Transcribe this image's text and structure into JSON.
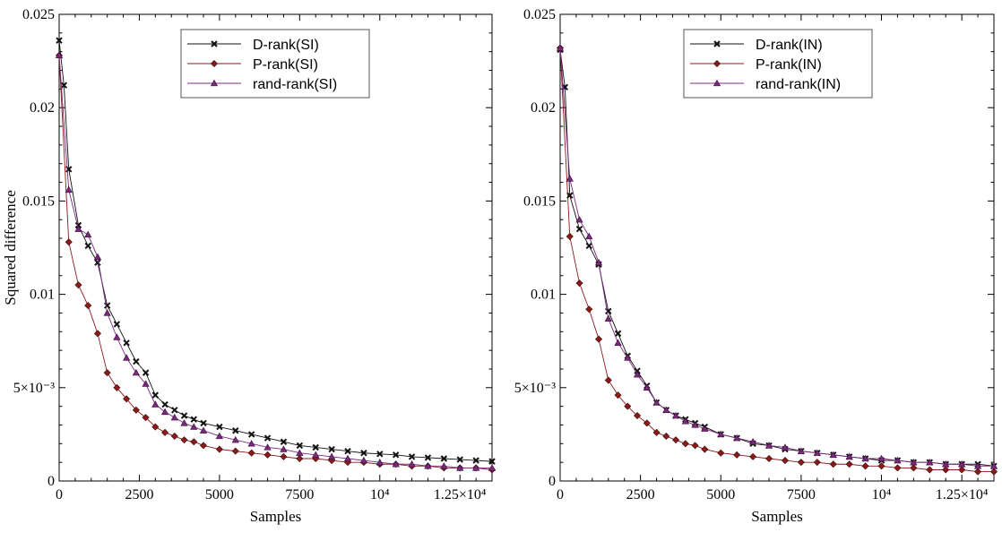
{
  "chart_data": [
    {
      "type": "line",
      "title": "",
      "xlabel": "Samples",
      "ylabel": "Squared difference",
      "xlim": [
        0,
        13500
      ],
      "ylim": [
        0,
        0.025
      ],
      "x_ticks": [
        0,
        2500,
        5000,
        7500,
        10000,
        12500
      ],
      "x_tick_labels": [
        "0",
        "2500",
        "5000",
        "7500",
        "10⁴",
        "1.25×10⁴"
      ],
      "y_ticks": [
        0,
        0.005,
        0.01,
        0.015,
        0.02,
        0.025
      ],
      "y_tick_labels": [
        "0",
        "5×10⁻³",
        "0.01",
        "0.015",
        "0.02",
        "0.025"
      ],
      "legend_position": "top-center",
      "grid": false,
      "series": [
        {
          "name": "D-rank(SI)",
          "color": "#111111",
          "marker": "x",
          "points": [
            [
              0,
              0.0236
            ],
            [
              150,
              0.0212
            ],
            [
              300,
              0.0167
            ],
            [
              600,
              0.0137
            ],
            [
              900,
              0.0126
            ],
            [
              1200,
              0.0117
            ],
            [
              1500,
              0.0094
            ],
            [
              1800,
              0.0084
            ],
            [
              2100,
              0.0074
            ],
            [
              2400,
              0.0064
            ],
            [
              2700,
              0.0058
            ],
            [
              3000,
              0.0046
            ],
            [
              3300,
              0.0041
            ],
            [
              3600,
              0.0038
            ],
            [
              3900,
              0.0035
            ],
            [
              4200,
              0.0033
            ],
            [
              4500,
              0.0031
            ],
            [
              5000,
              0.0029
            ],
            [
              5500,
              0.0027
            ],
            [
              6000,
              0.0025
            ],
            [
              6500,
              0.0023
            ],
            [
              7000,
              0.0021
            ],
            [
              7500,
              0.0019
            ],
            [
              8000,
              0.0018
            ],
            [
              8500,
              0.0017
            ],
            [
              9000,
              0.0016
            ],
            [
              9500,
              0.0015
            ],
            [
              10000,
              0.00145
            ],
            [
              10500,
              0.0014
            ],
            [
              11000,
              0.0013
            ],
            [
              11500,
              0.00125
            ],
            [
              12000,
              0.0012
            ],
            [
              12500,
              0.00115
            ],
            [
              13000,
              0.0011
            ],
            [
              13500,
              0.00105
            ]
          ]
        },
        {
          "name": "P-rank(SI)",
          "color": "#8b1a1a",
          "marker": "diamond",
          "points": [
            [
              0,
              0.0228
            ],
            [
              300,
              0.0128
            ],
            [
              600,
              0.0105
            ],
            [
              900,
              0.0094
            ],
            [
              1200,
              0.0079
            ],
            [
              1500,
              0.0058
            ],
            [
              1800,
              0.005
            ],
            [
              2100,
              0.0044
            ],
            [
              2400,
              0.0038
            ],
            [
              2700,
              0.0034
            ],
            [
              3000,
              0.0029
            ],
            [
              3300,
              0.0026
            ],
            [
              3600,
              0.0024
            ],
            [
              3900,
              0.0022
            ],
            [
              4200,
              0.0021
            ],
            [
              4500,
              0.0019
            ],
            [
              5000,
              0.0017
            ],
            [
              5500,
              0.0016
            ],
            [
              6000,
              0.0015
            ],
            [
              6500,
              0.0014
            ],
            [
              7000,
              0.0013
            ],
            [
              7500,
              0.0012
            ],
            [
              8000,
              0.0012
            ],
            [
              8500,
              0.0011
            ],
            [
              9000,
              0.001
            ],
            [
              9500,
              0.001
            ],
            [
              10000,
              0.0009
            ],
            [
              10500,
              0.0009
            ],
            [
              11000,
              0.0008
            ],
            [
              11500,
              0.0008
            ],
            [
              12000,
              0.0007
            ],
            [
              12500,
              0.0007
            ],
            [
              13000,
              0.0007
            ],
            [
              13500,
              0.0006
            ]
          ]
        },
        {
          "name": "rand-rank(SI)",
          "color": "#7a2a7a",
          "marker": "triangle",
          "points": [
            [
              0,
              0.0228
            ],
            [
              300,
              0.0156
            ],
            [
              600,
              0.0135
            ],
            [
              900,
              0.0132
            ],
            [
              1200,
              0.012
            ],
            [
              1500,
              0.009
            ],
            [
              1800,
              0.0077
            ],
            [
              2100,
              0.0066
            ],
            [
              2400,
              0.0058
            ],
            [
              2700,
              0.0052
            ],
            [
              3000,
              0.0041
            ],
            [
              3300,
              0.0037
            ],
            [
              3600,
              0.0034
            ],
            [
              3900,
              0.0031
            ],
            [
              4200,
              0.0029
            ],
            [
              4500,
              0.0027
            ],
            [
              5000,
              0.0024
            ],
            [
              5500,
              0.0022
            ],
            [
              6000,
              0.002
            ],
            [
              6500,
              0.0018
            ],
            [
              7000,
              0.0017
            ],
            [
              7500,
              0.0015
            ],
            [
              8000,
              0.0014
            ],
            [
              8500,
              0.0013
            ],
            [
              9000,
              0.0012
            ],
            [
              9500,
              0.0011
            ],
            [
              10000,
              0.001
            ],
            [
              10500,
              0.0009
            ],
            [
              11000,
              0.0009
            ],
            [
              11500,
              0.0008
            ],
            [
              12000,
              0.0008
            ],
            [
              12500,
              0.0007
            ],
            [
              13000,
              0.0007
            ],
            [
              13500,
              0.0007
            ]
          ]
        }
      ]
    },
    {
      "type": "line",
      "title": "",
      "xlabel": "Samples",
      "ylabel": "",
      "xlim": [
        0,
        13500
      ],
      "ylim": [
        0,
        0.025
      ],
      "x_ticks": [
        0,
        2500,
        5000,
        7500,
        10000,
        12500
      ],
      "x_tick_labels": [
        "0",
        "2500",
        "5000",
        "7500",
        "10⁴",
        "1.25×10⁴"
      ],
      "y_ticks": [
        0,
        0.005,
        0.01,
        0.015,
        0.02,
        0.025
      ],
      "y_tick_labels": [
        "0",
        "5×10⁻³",
        "0.01",
        "0.015",
        "0.02",
        "0.025"
      ],
      "legend_position": "top-center",
      "grid": false,
      "series": [
        {
          "name": "D-rank(IN)",
          "color": "#111111",
          "marker": "x",
          "points": [
            [
              0,
              0.0231
            ],
            [
              150,
              0.0211
            ],
            [
              300,
              0.0153
            ],
            [
              600,
              0.0135
            ],
            [
              900,
              0.0126
            ],
            [
              1200,
              0.0116
            ],
            [
              1500,
              0.0091
            ],
            [
              1800,
              0.0079
            ],
            [
              2100,
              0.0067
            ],
            [
              2400,
              0.0059
            ],
            [
              2700,
              0.0051
            ],
            [
              3000,
              0.0042
            ],
            [
              3300,
              0.0038
            ],
            [
              3600,
              0.0035
            ],
            [
              3900,
              0.0033
            ],
            [
              4200,
              0.0031
            ],
            [
              4500,
              0.0029
            ],
            [
              5000,
              0.0025
            ],
            [
              5500,
              0.0023
            ],
            [
              6000,
              0.002
            ],
            [
              6500,
              0.0019
            ],
            [
              7000,
              0.0017
            ],
            [
              7500,
              0.0016
            ],
            [
              8000,
              0.0015
            ],
            [
              8500,
              0.0014
            ],
            [
              9000,
              0.0013
            ],
            [
              9500,
              0.0012
            ],
            [
              10000,
              0.0011
            ],
            [
              10500,
              0.0011
            ],
            [
              11000,
              0.001
            ],
            [
              11500,
              0.001
            ],
            [
              12000,
              0.0009
            ],
            [
              12500,
              0.0009
            ],
            [
              13000,
              0.0009
            ],
            [
              13500,
              0.0008
            ]
          ]
        },
        {
          "name": "P-rank(IN)",
          "color": "#8b1a1a",
          "marker": "diamond",
          "points": [
            [
              0,
              0.0232
            ],
            [
              300,
              0.0131
            ],
            [
              600,
              0.0106
            ],
            [
              900,
              0.0092
            ],
            [
              1200,
              0.0076
            ],
            [
              1500,
              0.0054
            ],
            [
              1800,
              0.0046
            ],
            [
              2100,
              0.004
            ],
            [
              2400,
              0.0035
            ],
            [
              2700,
              0.0031
            ],
            [
              3000,
              0.0026
            ],
            [
              3300,
              0.0024
            ],
            [
              3600,
              0.0022
            ],
            [
              3900,
              0.002
            ],
            [
              4200,
              0.0019
            ],
            [
              4500,
              0.0017
            ],
            [
              5000,
              0.0015
            ],
            [
              5500,
              0.0014
            ],
            [
              6000,
              0.0013
            ],
            [
              6500,
              0.0012
            ],
            [
              7000,
              0.0011
            ],
            [
              7500,
              0.001
            ],
            [
              8000,
              0.001
            ],
            [
              8500,
              0.0009
            ],
            [
              9000,
              0.0009
            ],
            [
              9500,
              0.0008
            ],
            [
              10000,
              0.0008
            ],
            [
              10500,
              0.0007
            ],
            [
              11000,
              0.0007
            ],
            [
              11500,
              0.0006
            ],
            [
              12000,
              0.0006
            ],
            [
              12500,
              0.0006
            ],
            [
              13000,
              0.0005
            ],
            [
              13500,
              0.0005
            ]
          ]
        },
        {
          "name": "rand-rank(IN)",
          "color": "#7a2a7a",
          "marker": "triangle",
          "points": [
            [
              0,
              0.0232
            ],
            [
              300,
              0.0162
            ],
            [
              600,
              0.014
            ],
            [
              900,
              0.0131
            ],
            [
              1200,
              0.0117
            ],
            [
              1500,
              0.0087
            ],
            [
              1800,
              0.0074
            ],
            [
              2100,
              0.0066
            ],
            [
              2400,
              0.0057
            ],
            [
              2700,
              0.005
            ],
            [
              3000,
              0.0042
            ],
            [
              3300,
              0.0038
            ],
            [
              3600,
              0.0035
            ],
            [
              3900,
              0.0032
            ],
            [
              4200,
              0.003
            ],
            [
              4500,
              0.0028
            ],
            [
              5000,
              0.0025
            ],
            [
              5500,
              0.0023
            ],
            [
              6000,
              0.0021
            ],
            [
              6500,
              0.0019
            ],
            [
              7000,
              0.0018
            ],
            [
              7500,
              0.0016
            ],
            [
              8000,
              0.0015
            ],
            [
              8500,
              0.0014
            ],
            [
              9000,
              0.0013
            ],
            [
              9500,
              0.0012
            ],
            [
              10000,
              0.0012
            ],
            [
              10500,
              0.0011
            ],
            [
              11000,
              0.001
            ],
            [
              11500,
              0.001
            ],
            [
              12000,
              0.0009
            ],
            [
              12500,
              0.0009
            ],
            [
              13000,
              0.0008
            ],
            [
              13500,
              0.0008
            ]
          ]
        }
      ]
    }
  ]
}
